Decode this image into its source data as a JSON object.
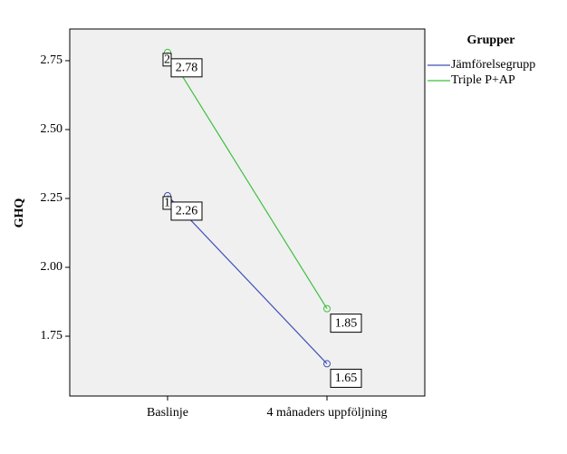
{
  "chart_data": {
    "type": "line",
    "y_label": "GHQ",
    "legend_title": "Grupper",
    "legend_position": "right",
    "categories": [
      "Baslinje",
      "4 månaders uppföljning"
    ],
    "series": [
      {
        "name": "Jämförelsegrupp",
        "color": "#3f51b5",
        "marker_label": "1",
        "values": [
          2.26,
          1.65
        ]
      },
      {
        "name": "Triple P+AP",
        "color": "#3fbf3f",
        "marker_label": "2",
        "values": [
          2.78,
          1.85
        ]
      }
    ],
    "ylim": [
      1.533,
      2.865
    ],
    "yticks": [
      1.75,
      {
        "value": 2.0,
        "label": "2.00"
      },
      2.25,
      {
        "value": 2.5,
        "label": "2.50"
      },
      2.75
    ],
    "data_labels": true
  }
}
